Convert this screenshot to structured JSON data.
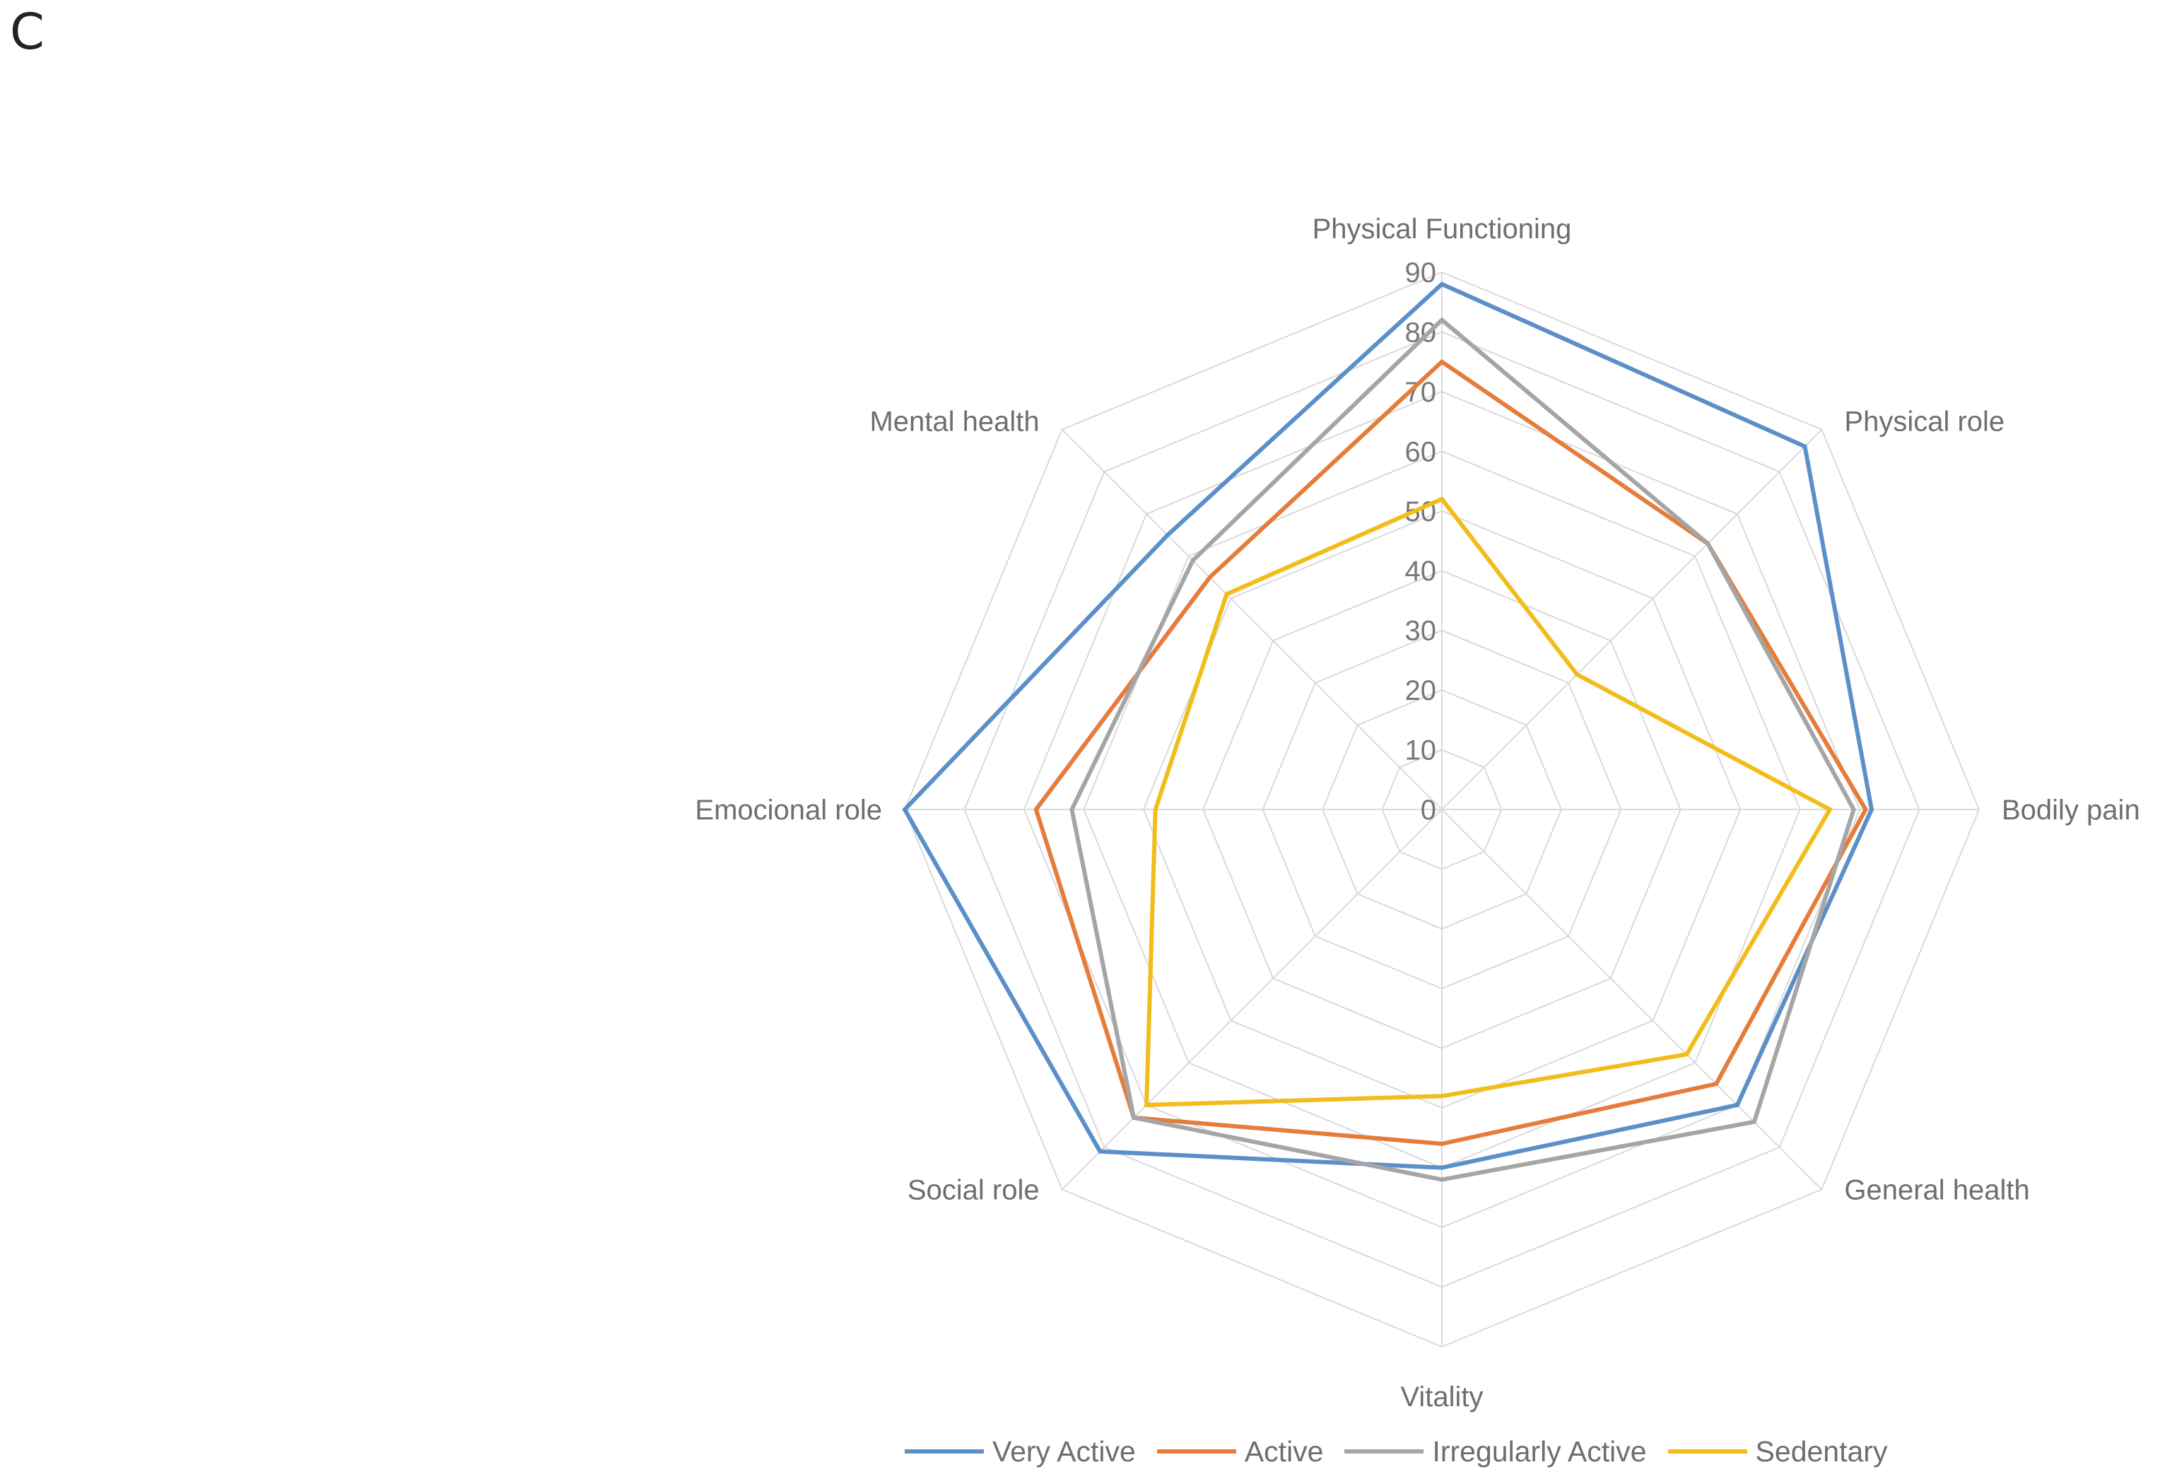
{
  "panel_label": "C",
  "chart_data": {
    "type": "radar",
    "title": "",
    "axes": [
      "Physical Functioning",
      "Physical role",
      "Bodily pain",
      "General health",
      "Vitality",
      "Social role",
      "Emocional role",
      "Mental health"
    ],
    "ticks": [
      "0",
      "10",
      "20",
      "30",
      "40",
      "50",
      "60",
      "70",
      "80",
      "90"
    ],
    "rlim": [
      0,
      90
    ],
    "grid": true,
    "legend_position": "bottom",
    "series": [
      {
        "name": "Very Active",
        "color": "#5b8fc7",
        "values": [
          88,
          86,
          72,
          70,
          60,
          81,
          90,
          65
        ]
      },
      {
        "name": "Active",
        "color": "#e57c3a",
        "values": [
          75,
          63,
          71,
          65,
          56,
          73,
          68,
          55
        ]
      },
      {
        "name": "Irregularly Active",
        "color": "#a5a5a5",
        "values": [
          82,
          63,
          69,
          74,
          62,
          73,
          62,
          59
        ]
      },
      {
        "name": "Sedentary",
        "color": "#f2bc1a",
        "values": [
          52,
          32,
          65,
          58,
          48,
          70,
          48,
          51
        ]
      }
    ]
  }
}
